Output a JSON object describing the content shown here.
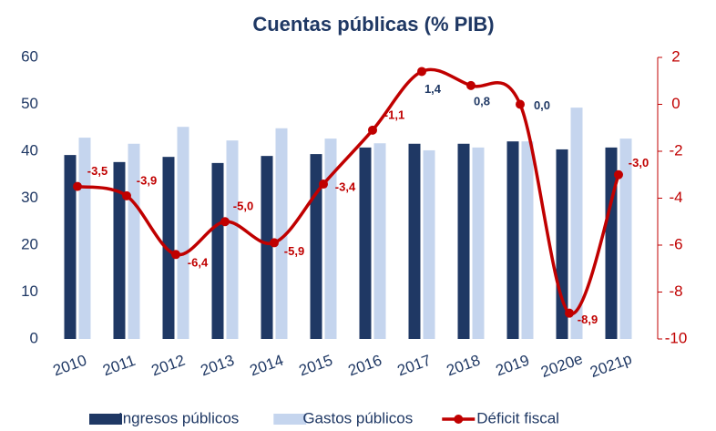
{
  "chart_data": {
    "type": "bar-line",
    "title": "Cuentas públicas (% PIB)",
    "categories": [
      "2010",
      "2011",
      "2012",
      "2013",
      "2014",
      "2015",
      "2016",
      "2017",
      "2018",
      "2019",
      "2020e",
      "2021p"
    ],
    "series": [
      {
        "name": "Ingresos públicos",
        "type": "bar",
        "color": "#1f3864",
        "values": [
          39.2,
          37.7,
          38.8,
          37.5,
          39.0,
          39.4,
          40.8,
          41.6,
          41.6,
          42.1,
          40.4,
          40.8
        ]
      },
      {
        "name": "Gastos públicos",
        "type": "bar",
        "color": "#c5d5ee",
        "values": [
          42.9,
          41.6,
          45.2,
          42.3,
          44.9,
          42.7,
          41.7,
          40.2,
          40.8,
          42.1,
          49.3,
          42.7
        ]
      },
      {
        "name": "Déficit fiscal",
        "type": "line",
        "axis": "y2",
        "color": "#c00000",
        "values": [
          -3.5,
          -3.9,
          -6.4,
          -5.0,
          -5.9,
          -3.4,
          -1.1,
          1.4,
          0.8,
          0.0,
          -8.9,
          -3.0
        ],
        "value_labels": [
          "-3,5",
          "-3,9",
          "-6,4",
          "-5,0",
          "-5,9",
          "-3,4",
          "-1,1",
          "1,4",
          "0,8",
          "0,0",
          "-8,9",
          "-3,0"
        ]
      }
    ],
    "ylim": [
      0,
      60
    ],
    "yticks": [
      0,
      10,
      20,
      30,
      40,
      50,
      60
    ],
    "y2lim": [
      -10,
      2
    ],
    "y2ticks": [
      -10,
      -8,
      -6,
      -4,
      -2,
      0,
      2
    ]
  }
}
